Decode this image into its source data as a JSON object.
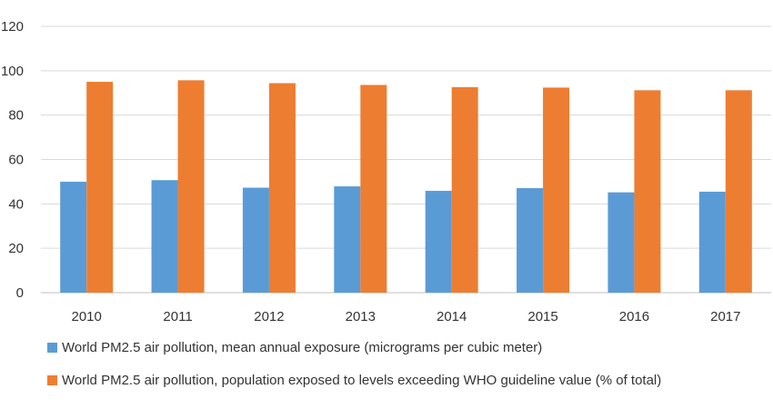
{
  "chart_data": {
    "type": "bar",
    "categories": [
      "2010",
      "2011",
      "2012",
      "2013",
      "2014",
      "2015",
      "2016",
      "2017"
    ],
    "series": [
      {
        "name": "World PM2.5 air pollution, mean annual exposure (micrograms per cubic meter)",
        "color": "#5b9bd5",
        "values": [
          50.0,
          50.7,
          47.3,
          47.9,
          45.9,
          47.1,
          45.2,
          45.5
        ]
      },
      {
        "name": "World PM2.5 air pollution, population exposed to levels exceeding WHO guideline value (% of total)",
        "color": "#ed7d31",
        "values": [
          95.0,
          95.7,
          94.4,
          93.6,
          92.6,
          92.4,
          91.2,
          91.2
        ]
      }
    ],
    "yticks": [
      "0",
      "20",
      "40",
      "60",
      "80",
      "100",
      "120"
    ],
    "ylim": [
      0,
      120
    ],
    "grid": true,
    "legend_position": "bottom",
    "gridline_color": "#d9d9d9",
    "axis_color": "#bfbfbf"
  }
}
